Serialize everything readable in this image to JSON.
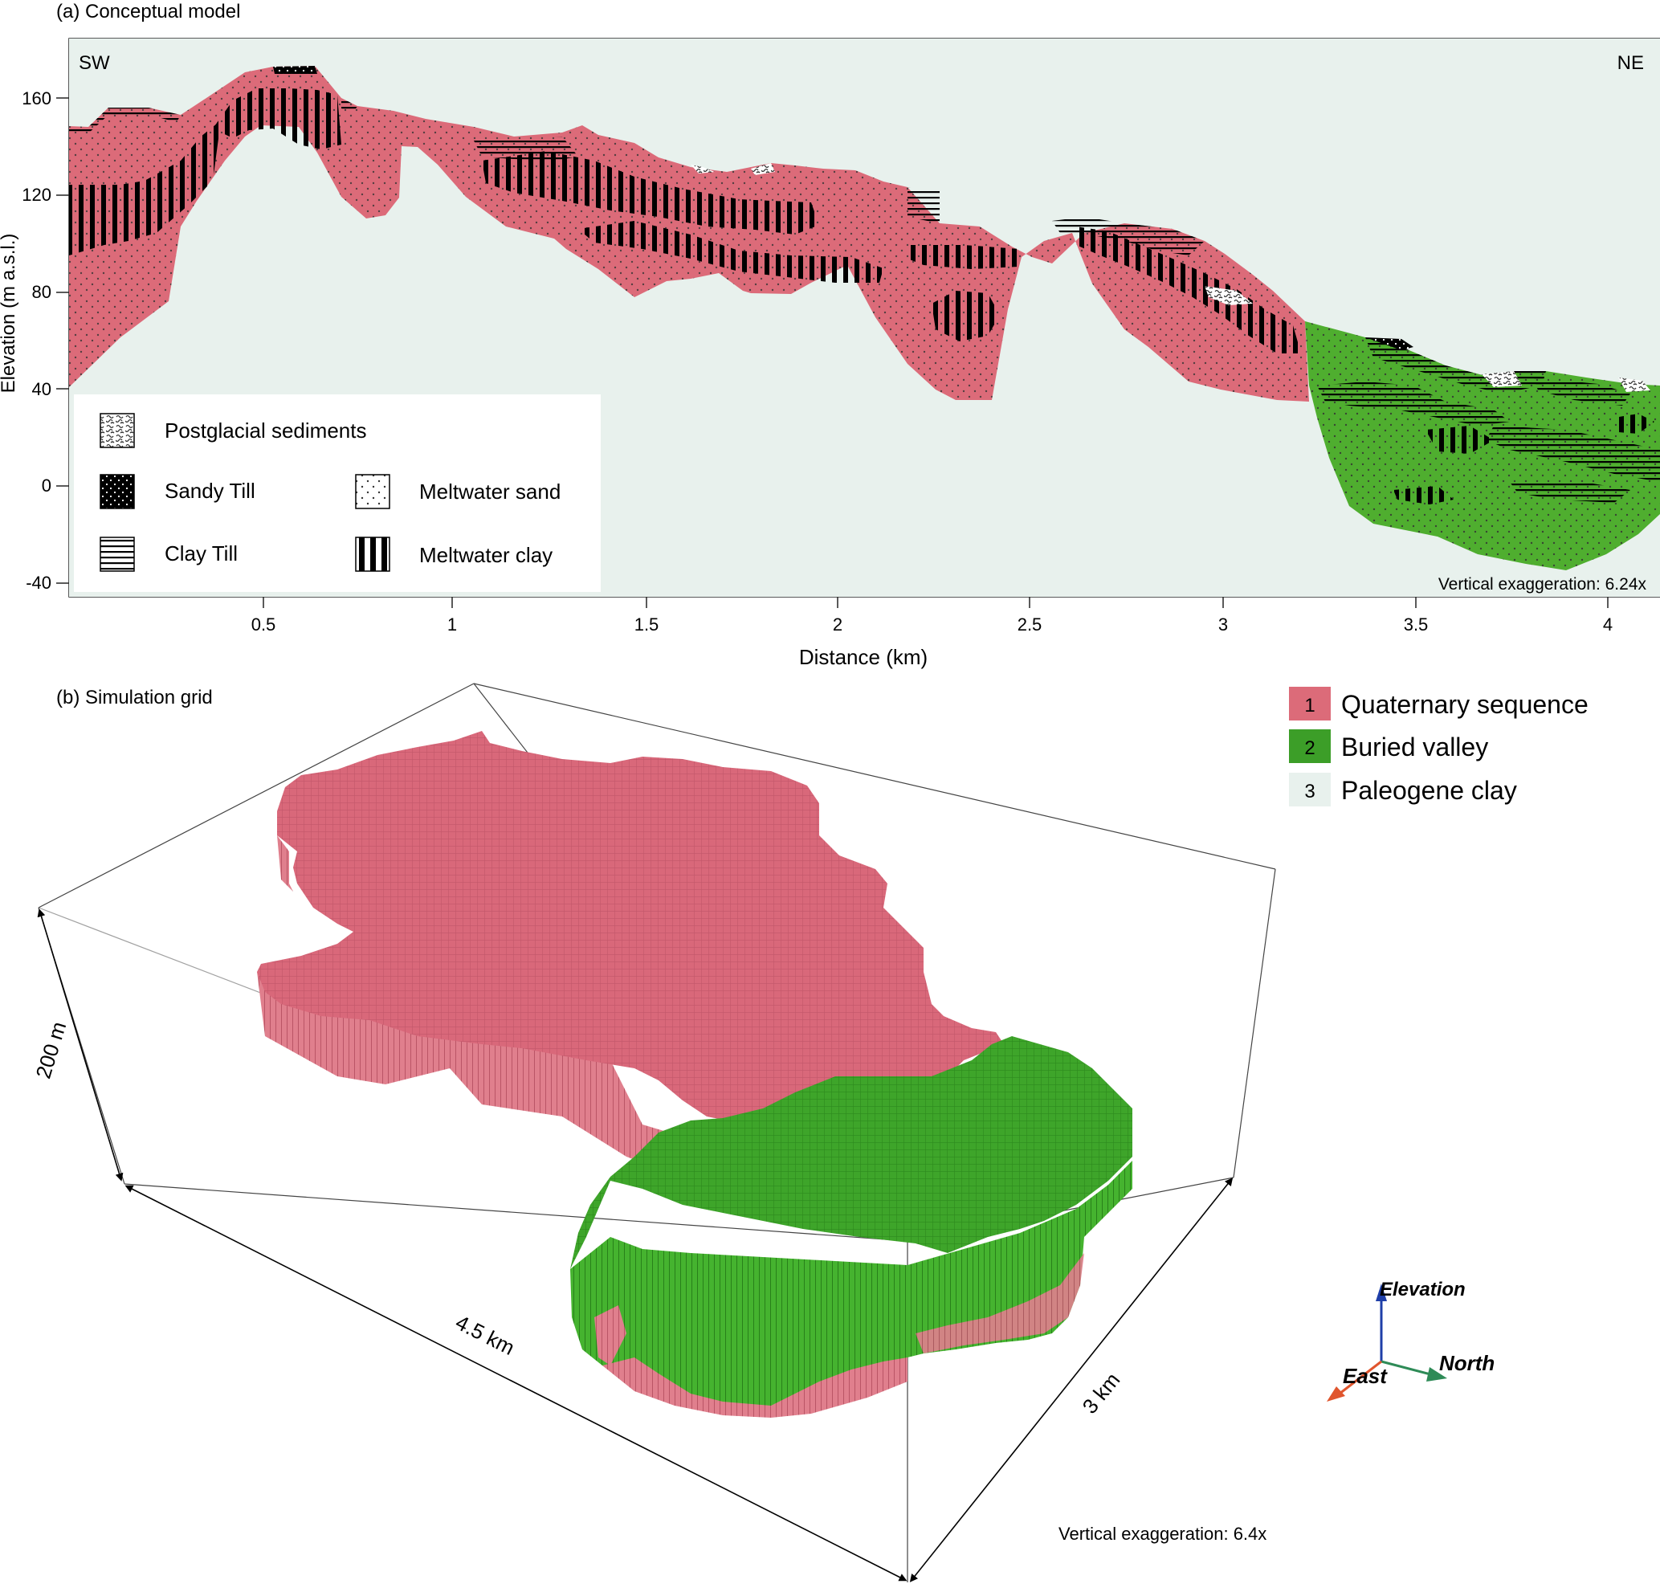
{
  "panel_a": {
    "label": "(a) Conceptual model",
    "left_tag": "SW",
    "right_tag": "NE",
    "ylabel": "Elevation (m a.s.l.)",
    "xlabel": "Distance (km)",
    "y_ticks": [
      "160",
      "120",
      "80",
      "40",
      "0",
      "-40"
    ],
    "x_ticks": [
      "0.5",
      "1",
      "1.5",
      "2",
      "2.5",
      "3",
      "3.5",
      "4"
    ],
    "exaggeration": "Vertical exaggeration: 6.24x",
    "legend": {
      "postglacial": "Postglacial sediments",
      "sandy_till": "Sandy Till",
      "clay_till": "Clay Till",
      "meltwater_sand": "Meltwater sand",
      "meltwater_clay": "Meltwater clay"
    },
    "colors": {
      "quaternary": "#dc6b79",
      "buried_valley": "#4fae2f",
      "paleogene": "#e8f1ed"
    }
  },
  "panel_b": {
    "label": "(b) Simulation grid",
    "legend": [
      {
        "num": "1",
        "label": "Quaternary sequence",
        "color": "#dc6b79"
      },
      {
        "num": "2",
        "label": "Buried valley",
        "color": "#3c9e28"
      },
      {
        "num": "3",
        "label": "Paleogene clay",
        "color": "#e8f1ed"
      }
    ],
    "dim_height": "200 m",
    "dim_length": "4.5 km",
    "dim_width": "3 km",
    "axes": {
      "elevation": "Elevation",
      "north": "North",
      "east": "East"
    },
    "axis_colors": {
      "elevation": "#1f3fa8",
      "north": "#2e8b57",
      "east": "#e0552d"
    },
    "exaggeration": "Vertical exaggeration: 6.4x"
  }
}
